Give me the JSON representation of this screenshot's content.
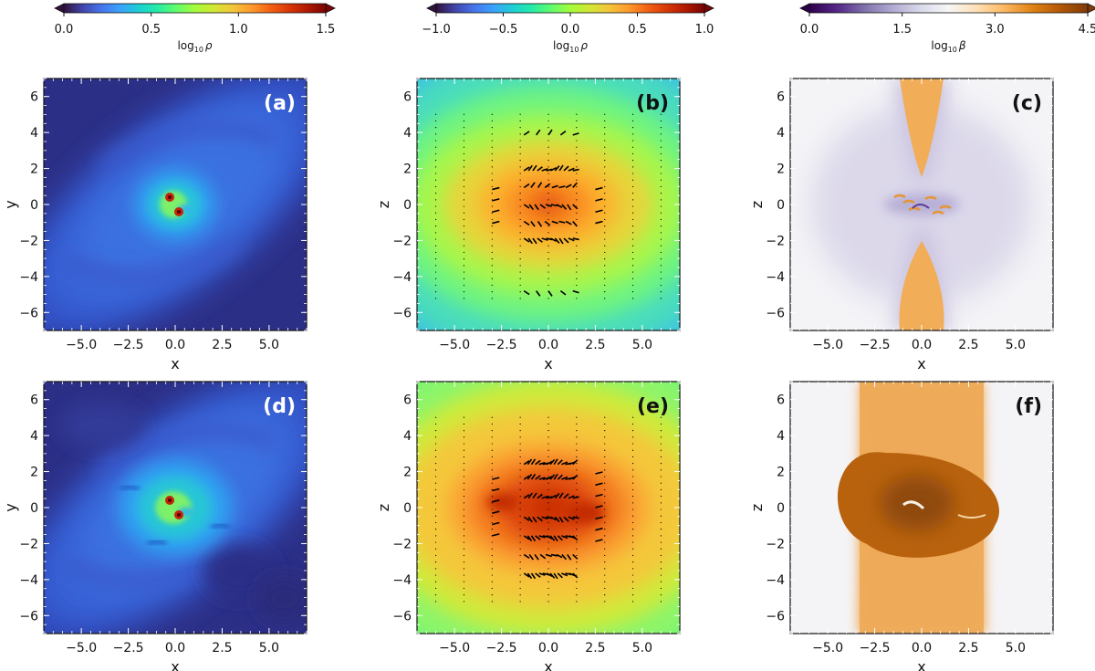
{
  "chart_data": [
    {
      "id": "a",
      "type": "heatmap",
      "panel_label": "(a)",
      "xlabel": "x",
      "ylabel": "y",
      "xlim": [
        -7,
        7
      ],
      "ylim": [
        -7,
        7
      ],
      "xticks": [
        "−5.0",
        "−2.5",
        "0.0",
        "2.5",
        "5.0"
      ],
      "yticks": [
        "−6",
        "−4",
        "−2",
        "0",
        "2",
        "4",
        "6"
      ],
      "quantity": "log10 rho",
      "colormap": "turbo",
      "clim": [
        0.0,
        1.5
      ],
      "view": "face-on",
      "state": "early"
    },
    {
      "id": "b",
      "type": "heatmap",
      "panel_label": "(b)",
      "xlabel": "x",
      "ylabel": "z",
      "xlim": [
        -7,
        7
      ],
      "ylim": [
        -7,
        7
      ],
      "xticks": [
        "−5.0",
        "−2.5",
        "0.0",
        "2.5",
        "5.0"
      ],
      "yticks": [
        "−6",
        "−4",
        "−2",
        "0",
        "2",
        "4",
        "6"
      ],
      "quantity": "log10 rho",
      "colormap": "turbo",
      "clim": [
        -1.0,
        1.0
      ],
      "view": "edge-on",
      "vectors": "velocity arrows",
      "state": "early"
    },
    {
      "id": "c",
      "type": "heatmap",
      "panel_label": "(c)",
      "xlabel": "x",
      "ylabel": "z",
      "xlim": [
        -7,
        7
      ],
      "ylim": [
        -7,
        7
      ],
      "xticks": [
        "−5.0",
        "−2.5",
        "0.0",
        "2.5",
        "5.0"
      ],
      "yticks": [
        "−6",
        "−4",
        "−2",
        "0",
        "2",
        "4",
        "6"
      ],
      "quantity": "log10 beta",
      "colormap": "PuOr_r",
      "clim": [
        0.0,
        4.5
      ],
      "view": "edge-on",
      "state": "early"
    },
    {
      "id": "d",
      "type": "heatmap",
      "panel_label": "(d)",
      "xlabel": "x",
      "ylabel": "y",
      "xlim": [
        -7,
        7
      ],
      "ylim": [
        -7,
        7
      ],
      "xticks": [
        "−5.0",
        "−2.5",
        "0.0",
        "2.5",
        "5.0"
      ],
      "yticks": [
        "−6",
        "−4",
        "−2",
        "0",
        "2",
        "4",
        "6"
      ],
      "quantity": "log10 rho",
      "colormap": "turbo",
      "clim": [
        0.0,
        1.5
      ],
      "view": "face-on",
      "state": "late"
    },
    {
      "id": "e",
      "type": "heatmap",
      "panel_label": "(e)",
      "xlabel": "x",
      "ylabel": "z",
      "xlim": [
        -7,
        7
      ],
      "ylim": [
        -7,
        7
      ],
      "xticks": [
        "−5.0",
        "−2.5",
        "0.0",
        "2.5",
        "5.0"
      ],
      "yticks": [
        "−6",
        "−4",
        "−2",
        "0",
        "2",
        "4",
        "6"
      ],
      "quantity": "log10 rho",
      "colormap": "turbo",
      "clim": [
        -1.0,
        1.0
      ],
      "view": "edge-on",
      "vectors": "velocity arrows",
      "state": "late"
    },
    {
      "id": "f",
      "type": "heatmap",
      "panel_label": "(f)",
      "xlabel": "x",
      "ylabel": "z",
      "xlim": [
        -7,
        7
      ],
      "ylim": [
        -7,
        7
      ],
      "xticks": [
        "−5.0",
        "−2.5",
        "0.0",
        "2.5",
        "5.0"
      ],
      "yticks": [
        "−6",
        "−4",
        "−2",
        "0",
        "2",
        "4",
        "6"
      ],
      "quantity": "log10 beta",
      "colormap": "PuOr_r",
      "clim": [
        0.0,
        4.5
      ],
      "view": "edge-on",
      "state": "late"
    }
  ],
  "colorbars": [
    {
      "column": 0,
      "label_base": "log",
      "label_sub": "10",
      "label_var": "ρ",
      "ticks": [
        0.0,
        0.5,
        1.0,
        1.5
      ],
      "tick_labels": [
        "0.0",
        "0.5",
        "1.0",
        "1.5"
      ],
      "vmin": 0.0,
      "vmax": 1.5,
      "cmap": "turbo"
    },
    {
      "column": 1,
      "label_base": "log",
      "label_sub": "10",
      "label_var": "ρ",
      "ticks": [
        -1.0,
        -0.5,
        0.0,
        0.5,
        1.0
      ],
      "tick_labels": [
        "−1.0",
        "−0.5",
        "0.0",
        "0.5",
        "1.0"
      ],
      "vmin": -1.0,
      "vmax": 1.0,
      "cmap": "turbo"
    },
    {
      "column": 2,
      "label_base": "log",
      "label_sub": "10",
      "label_var": "β",
      "ticks": [
        0.0,
        1.5,
        3.0,
        4.5
      ],
      "tick_labels": [
        "0.0",
        "1.5",
        "3.0",
        "4.5"
      ],
      "vmin": 0.0,
      "vmax": 4.5,
      "cmap": "PuOr_r"
    }
  ],
  "colors": {
    "turbo": [
      "#30123b",
      "#4145ab",
      "#4675ed",
      "#39a2fc",
      "#1bcfd4",
      "#24eca6",
      "#61fc6c",
      "#a4fc3b",
      "#d1e834",
      "#f3c63a",
      "#fe9b2d",
      "#f36315",
      "#d93806",
      "#b11901",
      "#7a0402"
    ],
    "PuOr_r": [
      "#2d004b",
      "#542788",
      "#8073ac",
      "#b2abd2",
      "#d8daeb",
      "#f7f7f7",
      "#fee0b6",
      "#fdb863",
      "#e08214",
      "#b35806",
      "#7f3b08"
    ]
  }
}
